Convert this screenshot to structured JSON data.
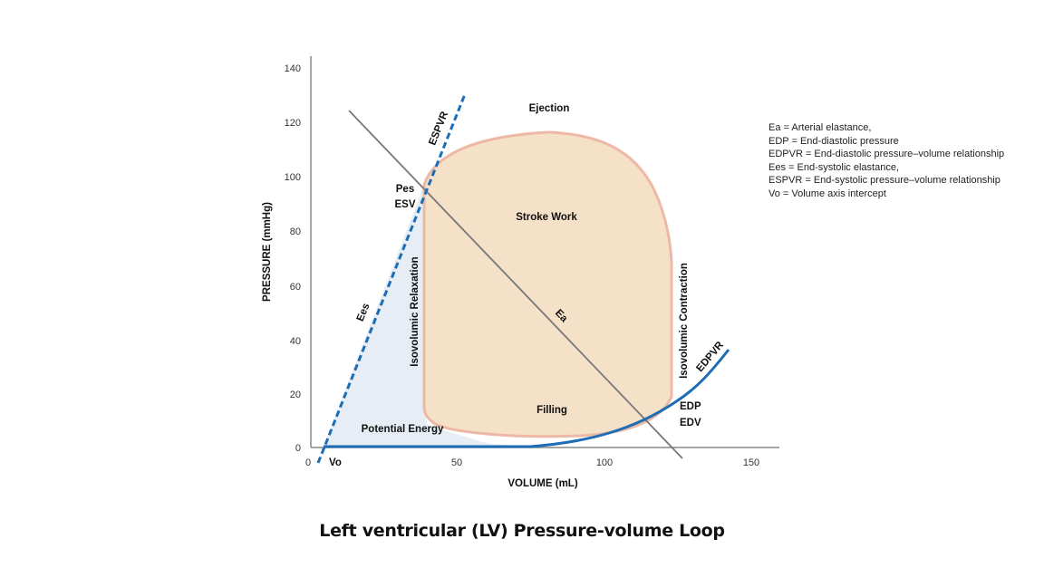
{
  "caption": "Left ventricular (LV) Pressure-volume Loop",
  "x_axis": {
    "title": "VOLUME (mL)",
    "ticks": [
      "0",
      "50",
      "100",
      "150"
    ]
  },
  "y_axis": {
    "title": "PRESSURE (mmHg)",
    "ticks": [
      "0",
      "20",
      "40",
      "60",
      "80",
      "100",
      "120",
      "140"
    ]
  },
  "labels": {
    "ejection": "Ejection",
    "stroke_work": "Stroke Work",
    "filling": "Filling",
    "potential_energy": "Potential Energy",
    "isovolumic_relaxation": "Isovolumic  Relaxation",
    "isovolumic_contraction": "Isovolumic Contraction",
    "pes": "Pes",
    "esv": "ESV",
    "edp": "EDP",
    "edv": "EDV",
    "espvr": "ESPVR",
    "edpvr": "EDPVR",
    "ees": "Ees",
    "ea": "Ea",
    "vo": "Vo"
  },
  "legend": [
    "Ea = Arterial elastance,",
    "EDP = End-diastolic pressure",
    "EDPVR = End-diastolic pressure–volume relationship",
    "Ees = End-systolic elastance,",
    "ESPVR = End-systolic pressure–volume relationship",
    "Vo = Volume axis intercept"
  ],
  "colors": {
    "axis": "#888888",
    "loop_fill": "#f5e1c8",
    "loop_stroke": "#edb9a6",
    "potential_energy_fill": "#e6edf4",
    "espvr_line": "#1c6db5",
    "edpvr_line": "#1c6db5",
    "ea_line": "#777777"
  }
}
